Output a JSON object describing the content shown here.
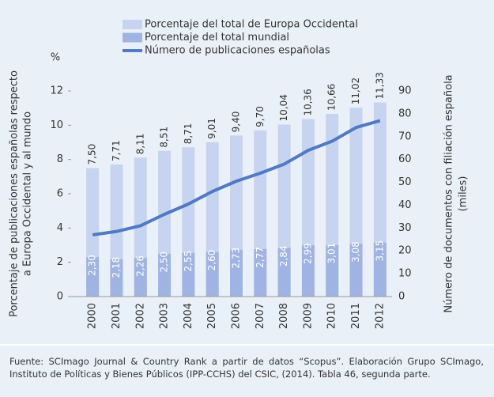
{
  "chart_data": {
    "type": "bar-line",
    "categories": [
      "2000",
      "2001",
      "2002",
      "2003",
      "2004",
      "2005",
      "2006",
      "2007",
      "2008",
      "2009",
      "2010",
      "2011",
      "2012"
    ],
    "series": [
      {
        "name": "Porcentaje del total de Europa Occidental",
        "type": "bar",
        "color": "#c6d4ef",
        "values": [
          7.5,
          7.71,
          8.11,
          8.51,
          8.71,
          9.01,
          9.4,
          9.7,
          10.04,
          10.36,
          10.66,
          11.02,
          11.33
        ],
        "value_labels": [
          "7,50",
          "7,71",
          "8,11",
          "8,51",
          "8,71",
          "9,01",
          "9,40",
          "9,70",
          "10,04",
          "10,36",
          "10,66",
          "11,02",
          "11,33"
        ]
      },
      {
        "name": "Porcentaje del total mundial",
        "type": "bar",
        "color": "#9fb4e2",
        "values": [
          2.3,
          2.18,
          2.26,
          2.5,
          2.55,
          2.6,
          2.73,
          2.77,
          2.84,
          2.99,
          3.01,
          3.08,
          3.15
        ],
        "value_labels": [
          "2,30",
          "2,18",
          "2,26",
          "2,50",
          "2,55",
          "2,60",
          "2,73",
          "2,77",
          "2,84",
          "2,99",
          "3,01",
          "3,08",
          "3,15"
        ]
      },
      {
        "name": "Número de publicaciones españolas",
        "type": "line",
        "color": "#4f7ac6",
        "axis": "y2",
        "values": [
          27,
          28.5,
          31,
          36,
          40.5,
          46,
          50.5,
          54,
          58,
          64,
          68,
          74,
          77
        ]
      }
    ],
    "y_unit": "%",
    "y_label": [
      "Porcentaje de publicaciones españolas respecto",
      "a Europa Occidental y al mundo"
    ],
    "y2_label": [
      "Número de documentos con filiación española",
      "(miles)"
    ],
    "ylim": [
      0,
      12
    ],
    "yticks": [
      0,
      2,
      4,
      6,
      8,
      10,
      12
    ],
    "y2lim": [
      0,
      90
    ],
    "y2ticks": [
      0,
      10,
      20,
      30,
      40,
      50,
      60,
      70,
      80,
      90
    ],
    "legend": "top",
    "source": "Fuente: SCImago Journal & Country Rank a partir de datos “Scopus”. Elaboración Grupo SCImago, Instituto de Políticas y Bienes Públicos (IPP-CCHS) del CSIC, (2014). Tabla 46, segunda parte."
  }
}
